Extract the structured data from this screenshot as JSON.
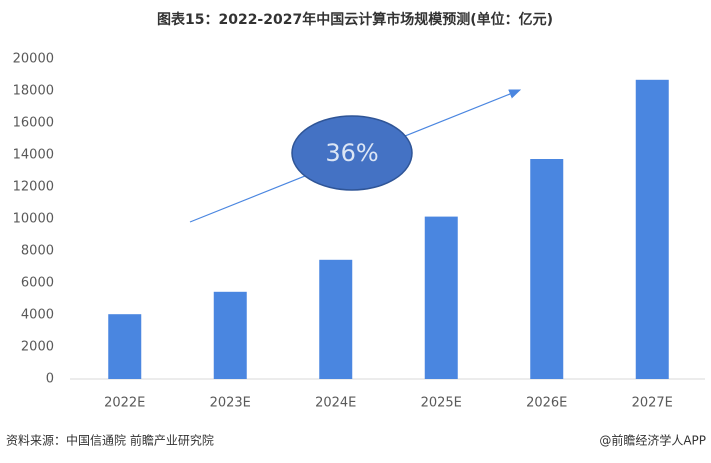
{
  "chart_data": {
    "type": "bar",
    "title": "图表15：2022-2027年中国云计算市场规模预测(单位：亿元)",
    "categories": [
      "2022E",
      "2023E",
      "2024E",
      "2025E",
      "2026E",
      "2027E"
    ],
    "values": [
      4050,
      5450,
      7450,
      10150,
      13750,
      18700
    ],
    "color": "#4a86e0",
    "ylim": [
      0,
      20000
    ],
    "yticks": [
      0,
      2000,
      4000,
      6000,
      8000,
      10000,
      12000,
      14000,
      16000,
      18000,
      20000
    ],
    "grid": false,
    "annotation": "36%",
    "source": "资料来源：中国信通院 前瞻产业研究院",
    "credit": "@前瞻经济学人APP"
  }
}
